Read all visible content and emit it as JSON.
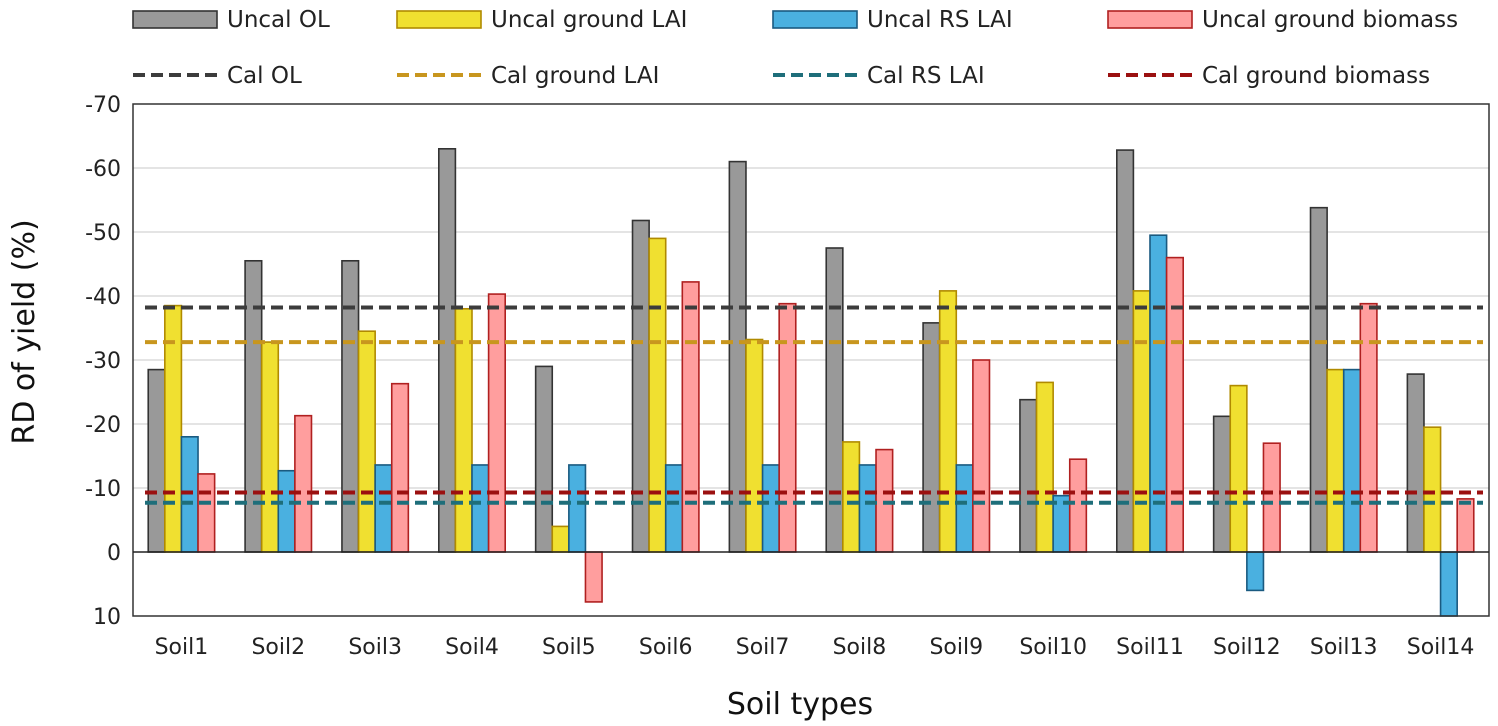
{
  "chart_data": {
    "type": "bar",
    "title": "",
    "xlabel": "Soil types",
    "ylabel": "RD of yield (%)",
    "ylim": [
      10,
      -70
    ],
    "y_inverted": true,
    "yticks": [
      10,
      0,
      -10,
      -20,
      -30,
      -40,
      -50,
      -60,
      -70
    ],
    "ytick_labels": [
      "10",
      "0",
      "-10",
      "-20",
      "-30",
      "-40",
      "-50",
      "-60",
      "-70"
    ],
    "grid": true,
    "categories": [
      "Soil1",
      "Soil2",
      "Soil3",
      "Soil4",
      "Soil5",
      "Soil6",
      "Soil7",
      "Soil8",
      "Soil9",
      "Soil10",
      "Soil11",
      "Soil12",
      "Soil13",
      "Soil14"
    ],
    "series": [
      {
        "name": "Uncal OL",
        "kind": "bar",
        "color": "#999999",
        "stroke": "#333333",
        "values": [
          -28.5,
          -45.5,
          -45.5,
          -63,
          -29,
          -51.8,
          -61,
          -47.5,
          -35.8,
          -23.8,
          -62.8,
          -21.2,
          -53.8,
          -27.8
        ]
      },
      {
        "name": "Uncal ground LAI",
        "kind": "bar",
        "color": "#f0e030",
        "stroke": "#b08a00",
        "values": [
          -38.5,
          -32.8,
          -34.5,
          -38,
          -4,
          -49,
          -33.2,
          -17.2,
          -40.8,
          -26.5,
          -40.8,
          -26,
          -28.5,
          -19.5
        ]
      },
      {
        "name": "Uncal RS LAI",
        "kind": "bar",
        "color": "#4ab0e0",
        "stroke": "#1a5a80",
        "values": [
          -18,
          -12.7,
          -13.6,
          -13.6,
          -13.6,
          -13.6,
          -13.6,
          -13.6,
          -13.6,
          -8.8,
          -49.5,
          6,
          -28.5,
          10
        ]
      },
      {
        "name": "Uncal ground biomass",
        "kind": "bar",
        "color": "#ff9e9e",
        "stroke": "#b02020",
        "values": [
          -12.2,
          -21.3,
          -26.3,
          -40.3,
          7.8,
          -42.2,
          -38.8,
          -16,
          -30,
          -14.5,
          -46,
          -17,
          -38.8,
          -8.3
        ]
      },
      {
        "name": "Cal OL",
        "kind": "line",
        "color": "#3c3c3c",
        "value": -38.2
      },
      {
        "name": "Cal ground LAI",
        "kind": "line",
        "color": "#c8961e",
        "value": -32.8
      },
      {
        "name": "Cal RS LAI",
        "kind": "line",
        "color": "#1e6e7a",
        "value": -7.7
      },
      {
        "name": "Cal ground biomass",
        "kind": "line",
        "color": "#9b1010",
        "value": -9.3
      }
    ],
    "legend_position": "top"
  }
}
